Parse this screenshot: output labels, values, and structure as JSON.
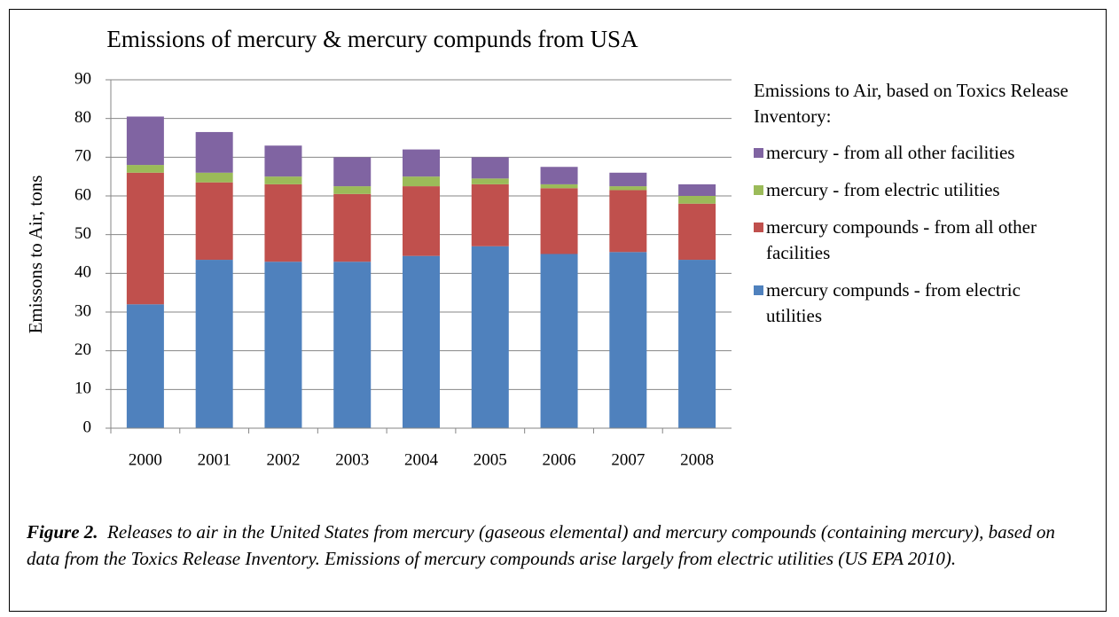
{
  "chart_data": {
    "type": "stacked_bar",
    "title": "Emissions of mercury & mercury compunds from USA",
    "y_label": "Emissons to Air, tons",
    "legend_title": "Emissions to Air, based on Toxics Release Inventory:",
    "categories": [
      "2000",
      "2001",
      "2002",
      "2003",
      "2004",
      "2005",
      "2006",
      "2007",
      "2008"
    ],
    "series": [
      {
        "name": "mercury compunds - from electric utilities",
        "color": "#4f81bd",
        "values": [
          32,
          43.5,
          43,
          43,
          44.5,
          47,
          45,
          45.5,
          43.5
        ]
      },
      {
        "name": "mercury compounds - from all other facilities",
        "color": "#c0504d",
        "values": [
          34,
          20,
          20,
          17.5,
          18,
          16,
          17,
          16,
          14.5
        ]
      },
      {
        "name": "mercury - from electric utilities",
        "color": "#9bbb59",
        "values": [
          2,
          2.5,
          2,
          2,
          2.5,
          1.5,
          1,
          1,
          2
        ]
      },
      {
        "name": "mercury - from all other facilities",
        "color": "#8064a2",
        "values": [
          12.5,
          10.5,
          8,
          7.5,
          7,
          5.5,
          4.5,
          3.5,
          3
        ]
      }
    ],
    "ylim": [
      0,
      90
    ],
    "yticks": [
      0,
      10,
      20,
      30,
      40,
      50,
      60,
      70,
      80,
      90
    ],
    "grid": true
  },
  "caption": {
    "label": "Figure 2.",
    "text": "Releases to air in the United States from mercury (gaseous elemental) and mercury compounds (containing mercury), based on data from the Toxics Release Inventory.  Emissions of mercury compounds arise largely from electric utilities (US EPA 2010)."
  }
}
